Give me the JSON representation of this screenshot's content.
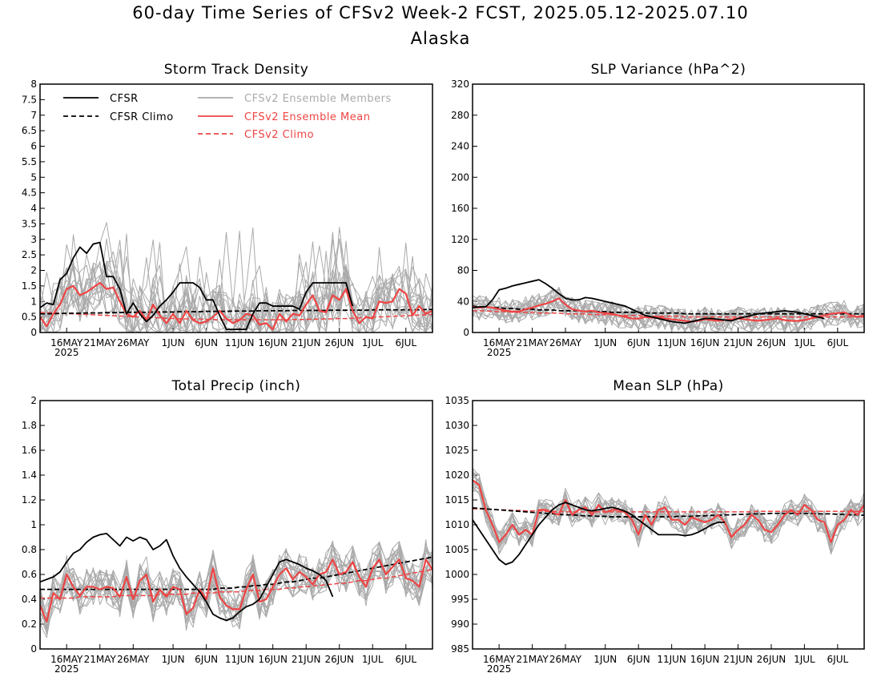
{
  "title_line1": "60-day Time Series of CFSv2 Week-2 FCST, 2025.05.12-2025.07.10",
  "title_line2": "Alaska",
  "colors": {
    "cfsr": "#000000",
    "members": "#aaaaaa",
    "mean": "#ee4444",
    "cfsv2_climo": "#ee4444",
    "cfsr_climo": "#000000"
  },
  "legend": {
    "cfsr": "CFSR",
    "cfsr_climo": "CFSR Climo",
    "members": "CFSv2 Ensemble Members",
    "mean": "CFSv2 Ensemble Mean",
    "cfsv2_climo": "CFSv2 Climo"
  },
  "x_ticks": [
    {
      "day": 4,
      "label": "16MAY",
      "sub": "2025"
    },
    {
      "day": 9,
      "label": "21MAY"
    },
    {
      "day": 14,
      "label": "26MAY"
    },
    {
      "day": 20,
      "label": "1JUN"
    },
    {
      "day": 25,
      "label": "6JUN"
    },
    {
      "day": 30,
      "label": "11JUN"
    },
    {
      "day": 35,
      "label": "16JUN"
    },
    {
      "day": 40,
      "label": "21JUN"
    },
    {
      "day": 45,
      "label": "26JUN"
    },
    {
      "day": 50,
      "label": "1JUL"
    },
    {
      "day": 55,
      "label": "6JUL"
    }
  ],
  "chart_data": [
    {
      "type": "line",
      "title": "Storm Track Density",
      "xlabel": "",
      "ylabel": "",
      "x_range": [
        "2025-05-12",
        "2025-07-10"
      ],
      "ylim": [
        0,
        8
      ],
      "yticks": [
        0,
        0.5,
        1,
        1.5,
        2,
        2.5,
        3,
        3.5,
        4,
        4.5,
        5,
        5.5,
        6,
        6.5,
        7,
        7.5,
        8
      ],
      "legend_placement": "top-left",
      "cfsr": [
        0.8,
        0.95,
        0.9,
        1.7,
        1.9,
        2.4,
        2.75,
        2.55,
        2.85,
        2.9,
        1.8,
        1.8,
        1.4,
        0.6,
        0.95,
        0.6,
        0.35,
        0.55,
        0.85,
        1.05,
        1.3,
        1.6,
        1.6,
        1.6,
        1.45,
        1.05,
        1.05,
        0.55,
        0.1,
        0.1,
        0.1,
        0.1,
        0.6,
        0.95,
        0.95,
        0.85,
        0.85,
        0.85,
        0.85,
        0.75,
        1.3,
        1.6,
        1.6,
        1.6,
        1.6,
        1.6,
        1.6,
        0.85
      ],
      "cfsr_climo": [
        0.6,
        0.6,
        0.61,
        0.61,
        0.62,
        0.62,
        0.62,
        0.63,
        0.63,
        0.63,
        0.64,
        0.64,
        0.64,
        0.65,
        0.65,
        0.65,
        0.65,
        0.66,
        0.66,
        0.66,
        0.66,
        0.67,
        0.67,
        0.67,
        0.67,
        0.68,
        0.68,
        0.68,
        0.68,
        0.69,
        0.69,
        0.69,
        0.69,
        0.7,
        0.7,
        0.7,
        0.7,
        0.7,
        0.71,
        0.71,
        0.71,
        0.71,
        0.71,
        0.71,
        0.72,
        0.72,
        0.72,
        0.72,
        0.72,
        0.72,
        0.73,
        0.73,
        0.73,
        0.73,
        0.73,
        0.73,
        0.73,
        0.73,
        0.74,
        0.74
      ],
      "cfsv2_mean": [
        0.5,
        0.2,
        0.6,
        0.9,
        1.4,
        1.5,
        1.2,
        1.3,
        1.45,
        1.6,
        1.4,
        1.45,
        1.0,
        0.6,
        0.5,
        0.7,
        0.4,
        0.9,
        0.55,
        0.3,
        0.6,
        0.3,
        0.7,
        0.4,
        0.3,
        0.35,
        0.5,
        0.7,
        0.45,
        0.3,
        0.4,
        0.6,
        0.55,
        0.25,
        0.3,
        0.1,
        0.6,
        0.35,
        0.6,
        0.55,
        0.9,
        1.2,
        0.7,
        0.65,
        1.2,
        1.05,
        1.4,
        0.7,
        0.3,
        0.5,
        0.45,
        1.0,
        0.95,
        1.0,
        1.4,
        1.25,
        0.55,
        0.85,
        0.6,
        0.7
      ],
      "cfsv2_climo": [
        0.65,
        0.64,
        0.63,
        0.62,
        0.61,
        0.6,
        0.59,
        0.58,
        0.57,
        0.56,
        0.55,
        0.54,
        0.53,
        0.52,
        0.51,
        0.5,
        0.49,
        0.48,
        0.47,
        0.46,
        0.45,
        0.44,
        0.44,
        0.43,
        0.43,
        0.42,
        0.42,
        0.41,
        0.41,
        0.41,
        0.41,
        0.41,
        0.41,
        0.41,
        0.41,
        0.41,
        0.41,
        0.41,
        0.42,
        0.42,
        0.42,
        0.43,
        0.43,
        0.44,
        0.44,
        0.45,
        0.45,
        0.46,
        0.47,
        0.48,
        0.49,
        0.5,
        0.51,
        0.52,
        0.53,
        0.54,
        0.55,
        0.56,
        0.57,
        0.58
      ]
    },
    {
      "type": "line",
      "title": "SLP Variance (hPa^2)",
      "xlabel": "",
      "ylabel": "",
      "x_range": [
        "2025-05-12",
        "2025-07-10"
      ],
      "ylim": [
        0,
        320
      ],
      "yticks": [
        0,
        40,
        80,
        120,
        160,
        200,
        240,
        280,
        320
      ],
      "cfsr": [
        32,
        33,
        33,
        42,
        55,
        57,
        60,
        62,
        64,
        66,
        68,
        63,
        57,
        50,
        44,
        42,
        42,
        45,
        44,
        42,
        40,
        38,
        36,
        34,
        30,
        26,
        22,
        20,
        18,
        16,
        14,
        13,
        12,
        14,
        16,
        18,
        18,
        17,
        16,
        15,
        18,
        20,
        22,
        24,
        25,
        26,
        27,
        28,
        27,
        26,
        24,
        22,
        20,
        18
      ],
      "cfsr_climo": [
        34,
        33,
        33,
        32,
        32,
        31,
        31,
        30,
        30,
        30,
        29,
        29,
        29,
        28,
        28,
        28,
        28,
        27,
        27,
        27,
        27,
        26,
        26,
        26,
        26,
        26,
        25,
        25,
        25,
        25,
        25,
        25,
        24,
        24,
        24,
        24,
        24,
        24,
        24,
        24,
        24,
        24,
        24,
        24,
        24,
        24,
        24,
        24,
        24,
        24,
        24,
        24,
        24,
        24,
        24,
        24,
        24,
        24,
        24,
        24
      ],
      "cfsv2_mean": [
        33,
        32,
        33,
        32,
        30,
        28,
        27,
        27,
        30,
        32,
        35,
        37,
        40,
        44,
        36,
        30,
        28,
        27,
        28,
        26,
        25,
        24,
        22,
        20,
        18,
        18,
        20,
        19,
        20,
        18,
        17,
        16,
        15,
        14,
        15,
        17,
        16,
        15,
        16,
        17,
        18,
        17,
        16,
        15,
        16,
        17,
        18,
        16,
        15,
        15,
        16,
        18,
        20,
        22,
        24,
        25,
        26,
        22,
        20,
        22
      ],
      "cfsv2_climo": [
        28,
        28,
        28,
        27,
        27,
        27,
        26,
        26,
        26,
        26,
        25,
        25,
        25,
        25,
        24,
        24,
        24,
        24,
        23,
        23,
        23,
        23,
        22,
        22,
        22,
        22,
        21,
        21,
        21,
        21,
        21,
        21,
        20,
        20,
        20,
        20,
        20,
        20,
        20,
        20,
        20,
        20,
        20,
        20,
        20,
        20,
        20,
        20,
        20,
        20,
        20,
        20,
        20,
        20,
        20,
        20,
        20,
        20,
        20,
        20
      ]
    },
    {
      "type": "line",
      "title": "Total Precip (inch)",
      "xlabel": "",
      "ylabel": "",
      "x_range": [
        "2025-05-12",
        "2025-07-10"
      ],
      "ylim": [
        0,
        2
      ],
      "yticks": [
        0,
        0.2,
        0.4,
        0.6,
        0.8,
        1,
        1.2,
        1.4,
        1.6,
        1.8,
        2
      ],
      "cfsr": [
        0.54,
        0.56,
        0.58,
        0.62,
        0.7,
        0.77,
        0.8,
        0.86,
        0.9,
        0.92,
        0.93,
        0.88,
        0.83,
        0.9,
        0.87,
        0.9,
        0.88,
        0.8,
        0.83,
        0.88,
        0.75,
        0.65,
        0.58,
        0.52,
        0.46,
        0.38,
        0.28,
        0.25,
        0.23,
        0.25,
        0.3,
        0.34,
        0.36,
        0.4,
        0.5,
        0.6,
        0.7,
        0.72,
        0.7,
        0.68,
        0.65,
        0.63,
        0.6,
        0.55,
        0.42
      ],
      "cfsr_climo": [
        0.48,
        0.48,
        0.48,
        0.48,
        0.48,
        0.48,
        0.48,
        0.48,
        0.48,
        0.48,
        0.48,
        0.48,
        0.48,
        0.48,
        0.48,
        0.48,
        0.48,
        0.48,
        0.48,
        0.48,
        0.48,
        0.48,
        0.48,
        0.48,
        0.48,
        0.48,
        0.48,
        0.49,
        0.49,
        0.49,
        0.5,
        0.5,
        0.51,
        0.51,
        0.52,
        0.52,
        0.53,
        0.54,
        0.54,
        0.55,
        0.56,
        0.57,
        0.57,
        0.58,
        0.59,
        0.6,
        0.61,
        0.62,
        0.63,
        0.64,
        0.65,
        0.66,
        0.67,
        0.68,
        0.69,
        0.7,
        0.71,
        0.72,
        0.73,
        0.74
      ],
      "cfsv2_mean": [
        0.35,
        0.22,
        0.45,
        0.4,
        0.6,
        0.5,
        0.43,
        0.5,
        0.5,
        0.48,
        0.5,
        0.49,
        0.42,
        0.58,
        0.4,
        0.55,
        0.6,
        0.38,
        0.48,
        0.42,
        0.5,
        0.48,
        0.28,
        0.33,
        0.48,
        0.4,
        0.65,
        0.42,
        0.35,
        0.32,
        0.32,
        0.48,
        0.6,
        0.38,
        0.4,
        0.5,
        0.6,
        0.65,
        0.56,
        0.62,
        0.58,
        0.52,
        0.6,
        0.62,
        0.72,
        0.6,
        0.62,
        0.7,
        0.58,
        0.5,
        0.65,
        0.72,
        0.6,
        0.66,
        0.72,
        0.57,
        0.55,
        0.5,
        0.72,
        0.64
      ],
      "cfsv2_climo": [
        0.41,
        0.41,
        0.41,
        0.41,
        0.41,
        0.41,
        0.42,
        0.42,
        0.42,
        0.42,
        0.42,
        0.42,
        0.43,
        0.43,
        0.43,
        0.43,
        0.43,
        0.43,
        0.44,
        0.44,
        0.44,
        0.44,
        0.44,
        0.45,
        0.45,
        0.45,
        0.45,
        0.46,
        0.46,
        0.46,
        0.46,
        0.47,
        0.47,
        0.47,
        0.48,
        0.48,
        0.48,
        0.49,
        0.49,
        0.5,
        0.5,
        0.51,
        0.51,
        0.52,
        0.52,
        0.53,
        0.53,
        0.54,
        0.55,
        0.55,
        0.56,
        0.57,
        0.57,
        0.58,
        0.59,
        0.6,
        0.61,
        0.62,
        0.63,
        0.64
      ]
    },
    {
      "type": "line",
      "title": "Mean SLP (hPa)",
      "xlabel": "",
      "ylabel": "",
      "x_range": [
        "2025-05-12",
        "2025-07-10"
      ],
      "ylim": [
        985,
        1035
      ],
      "yticks": [
        985,
        990,
        995,
        1000,
        1005,
        1010,
        1015,
        1020,
        1025,
        1030,
        1035
      ],
      "cfsr": [
        1011,
        1009,
        1007,
        1005,
        1003,
        1002,
        1002.5,
        1004,
        1006,
        1008,
        1010,
        1011.5,
        1013,
        1014,
        1014.5,
        1014,
        1013.5,
        1013,
        1012.8,
        1013,
        1013.3,
        1013.5,
        1013.2,
        1012.7,
        1012,
        1011,
        1010,
        1009,
        1008,
        1008,
        1008,
        1008,
        1007.8,
        1008,
        1008.5,
        1009.2,
        1010,
        1010.5,
        1010.5
      ],
      "cfsr_climo": [
        1013.4,
        1013.3,
        1013.2,
        1013.1,
        1013.0,
        1012.9,
        1012.8,
        1012.7,
        1012.6,
        1012.5,
        1012.4,
        1012.3,
        1012.2,
        1012.1,
        1012.0,
        1012.0,
        1011.9,
        1011.8,
        1011.8,
        1011.7,
        1011.7,
        1011.6,
        1011.6,
        1011.6,
        1011.6,
        1011.6,
        1011.6,
        1011.6,
        1011.6,
        1011.6,
        1011.6,
        1011.7,
        1011.7,
        1011.7,
        1011.8,
        1011.8,
        1011.9,
        1011.9,
        1012.0,
        1012.0,
        1012.1,
        1012.1,
        1012.2,
        1012.2,
        1012.2,
        1012.3,
        1012.3,
        1012.3,
        1012.3,
        1012.3,
        1012.3,
        1012.3,
        1012.2,
        1012.2,
        1012.2,
        1012.1,
        1012.1,
        1012.0,
        1012.0,
        1011.9
      ],
      "cfsv2_mean": [
        1019,
        1018,
        1013,
        1010,
        1006.5,
        1008,
        1010,
        1008,
        1009,
        1008,
        1013,
        1013,
        1012.5,
        1012,
        1015,
        1012,
        1013,
        1013.5,
        1012,
        1014,
        1012.5,
        1013,
        1013,
        1012.5,
        1011,
        1008,
        1012,
        1010,
        1013,
        1013.5,
        1011,
        1011,
        1010,
        1011.5,
        1011,
        1010.5,
        1011,
        1012,
        1010.5,
        1007.5,
        1009,
        1010,
        1012,
        1011,
        1009,
        1008.5,
        1010,
        1012,
        1013,
        1012,
        1014,
        1013,
        1011,
        1010.5,
        1006.5,
        1010,
        1011,
        1013,
        1012,
        1014
      ],
      "cfsv2_climo": [
        1013.2,
        1013.2,
        1013.1,
        1013.1,
        1013.0,
        1013.0,
        1012.9,
        1012.9,
        1012.8,
        1012.8,
        1012.8,
        1012.7,
        1012.7,
        1012.7,
        1012.6,
        1012.6,
        1012.6,
        1012.6,
        1012.6,
        1012.6,
        1012.6,
        1012.6,
        1012.6,
        1012.6,
        1012.6,
        1012.6,
        1012.6,
        1012.6,
        1012.6,
        1012.6,
        1012.6,
        1012.6,
        1012.6,
        1012.6,
        1012.6,
        1012.6,
        1012.6,
        1012.6,
        1012.6,
        1012.6,
        1012.6,
        1012.6,
        1012.6,
        1012.7,
        1012.7,
        1012.7,
        1012.7,
        1012.7,
        1012.7,
        1012.7,
        1012.7,
        1012.7,
        1012.7,
        1012.7,
        1012.7,
        1012.7,
        1012.7,
        1012.7,
        1012.7,
        1012.7
      ]
    }
  ]
}
